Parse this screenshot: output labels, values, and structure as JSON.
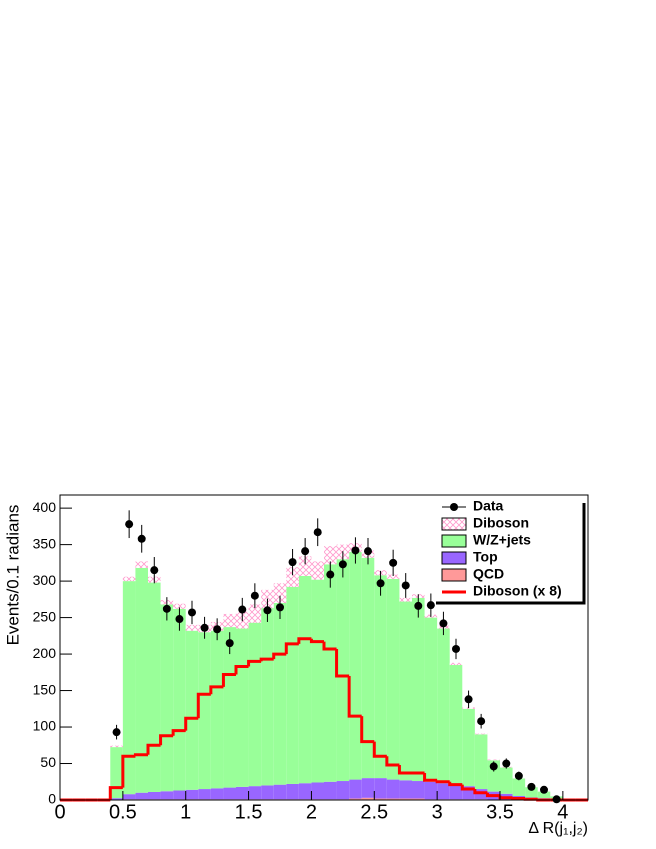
{
  "chart_data": {
    "type": "stacked-histogram",
    "y_label": "Events/0.1 radians",
    "x_label": "Δ R(j₁,j₂)",
    "xlim": [
      0,
      4.2
    ],
    "ylim": [
      0,
      418
    ],
    "xticks": [
      0,
      0.5,
      1,
      1.5,
      2,
      2.5,
      3,
      3.5,
      4
    ],
    "yticks": [
      0,
      50,
      100,
      150,
      200,
      250,
      300,
      350,
      400
    ],
    "bins": [
      0,
      0.1,
      0.2,
      0.3,
      0.4,
      0.5,
      0.6,
      0.7,
      0.8,
      0.9,
      1,
      1.1,
      1.2,
      1.3,
      1.4,
      1.5,
      1.6,
      1.7,
      1.8,
      1.9,
      2,
      2.1,
      2.2,
      2.3,
      2.4,
      2.5,
      2.6,
      2.7,
      2.8,
      2.9,
      3,
      3.1,
      3.2,
      3.3,
      3.4,
      3.5,
      3.6,
      3.7,
      3.8,
      3.9,
      4,
      4.1,
      4.2
    ],
    "series": [
      {
        "name": "QCD",
        "color": "#ff9999",
        "hatch": false,
        "values": [
          0,
          0,
          0,
          0,
          0.5,
          1,
          1,
          1,
          1,
          1,
          1,
          1,
          1,
          1,
          1,
          1,
          1,
          1,
          1,
          1,
          1,
          1,
          1,
          2,
          3,
          2,
          2,
          2,
          2,
          1,
          1,
          1,
          1,
          1,
          0.5,
          0.5,
          0.5,
          0.5,
          0.5,
          0,
          0,
          0
        ]
      },
      {
        "name": "Top",
        "color": "#9966ff",
        "hatch": false,
        "values": [
          0,
          0,
          0,
          0,
          2,
          7,
          9,
          10,
          11,
          12,
          13,
          14,
          15,
          16,
          17,
          18,
          19,
          20,
          21,
          22,
          23,
          24,
          25,
          26,
          27,
          28,
          26,
          25,
          24,
          24,
          22,
          20,
          18,
          14,
          11,
          8,
          5,
          3,
          2,
          1,
          0,
          0
        ]
      },
      {
        "name": "W/Z+jets",
        "color": "#99ff99",
        "hatch": false,
        "values": [
          0,
          0,
          0,
          0,
          70,
          292,
          308,
          287,
          256,
          249,
          218,
          215,
          216,
          220,
          217,
          224,
          243,
          249,
          270,
          284,
          278,
          298,
          304,
          312,
          302,
          278,
          275,
          245,
          251,
          225,
          212,
          164,
          106,
          75,
          43,
          36,
          24,
          14,
          9,
          4,
          0,
          0
        ]
      },
      {
        "name": "Diboson",
        "color": "#ff99cc",
        "hatch": true,
        "values": [
          0,
          0,
          0,
          0,
          2,
          6,
          9,
          8,
          6,
          7,
          8,
          10,
          12,
          18,
          23,
          25,
          25,
          27,
          27,
          27,
          25,
          25,
          20,
          12,
          10,
          7,
          6,
          5,
          5,
          4,
          4,
          3,
          2,
          1,
          1,
          1,
          0,
          0,
          0,
          0,
          0,
          0
        ]
      }
    ],
    "line_series": {
      "name": "Diboson (x 8)",
      "color": "#ff0000",
      "values": [
        0,
        0,
        0,
        0,
        17,
        60,
        62,
        75,
        88,
        95,
        112,
        145,
        155,
        172,
        183,
        190,
        193,
        200,
        214,
        221,
        217,
        207,
        170,
        115,
        80,
        60,
        48,
        37,
        37,
        27,
        25,
        21,
        15,
        10,
        6,
        3,
        2,
        1,
        0,
        0,
        0,
        0
      ]
    },
    "data_points": {
      "name": "Data",
      "color": "#000000",
      "x": [
        0.45,
        0.55,
        0.65,
        0.75,
        0.85,
        0.95,
        1.05,
        1.15,
        1.25,
        1.35,
        1.45,
        1.55,
        1.65,
        1.75,
        1.85,
        1.95,
        2.05,
        2.15,
        2.25,
        2.35,
        2.45,
        2.55,
        2.65,
        2.75,
        2.85,
        2.95,
        3.05,
        3.15,
        3.25,
        3.35,
        3.45,
        3.55,
        3.65,
        3.75,
        3.85,
        3.95
      ],
      "values": [
        93,
        378,
        358,
        315,
        262,
        248,
        257,
        236,
        234,
        215,
        261,
        280,
        260,
        264,
        326,
        341,
        367,
        309,
        323,
        342,
        341,
        297,
        325,
        294,
        266,
        267,
        242,
        207,
        138,
        108,
        46,
        50,
        33,
        18,
        14,
        1
      ],
      "errors": [
        10,
        19,
        19,
        18,
        16,
        16,
        16,
        15,
        15,
        15,
        16,
        17,
        16,
        16,
        18,
        18,
        19,
        18,
        18,
        18,
        18,
        17,
        18,
        17,
        16,
        16,
        16,
        14,
        12,
        10,
        7,
        7,
        6,
        4,
        4,
        1
      ]
    }
  }
}
